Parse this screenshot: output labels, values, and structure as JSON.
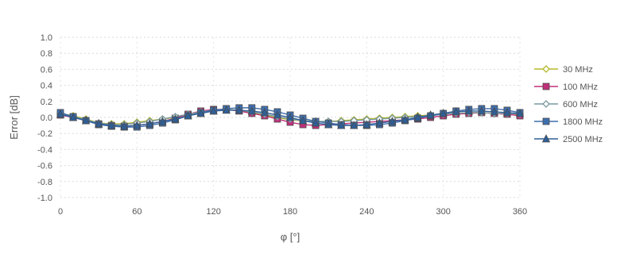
{
  "chart_data": {
    "type": "line",
    "title": "",
    "xlabel": "φ [°]",
    "ylabel": "Error [dB]",
    "xlim": [
      0,
      360
    ],
    "ylim": [
      -1.0,
      1.0
    ],
    "x_ticks": [
      0,
      60,
      120,
      180,
      240,
      300,
      360
    ],
    "x_tick_labels": [
      "0",
      "60",
      "120",
      "180",
      "240",
      "300",
      "360"
    ],
    "y_ticks": [
      1.0,
      0.8,
      0.6,
      0.4,
      0.2,
      0.0,
      -0.2,
      -0.4,
      -0.6,
      -0.8,
      -1.0
    ],
    "y_tick_labels": [
      "1.0",
      "0.8",
      "0.6",
      "0.4",
      "0.2",
      "0.0",
      "-0.2",
      "-0.4",
      "-0.6",
      "-0.8",
      "-1.0"
    ],
    "grid": true,
    "legend_position": "right",
    "x": [
      0,
      10,
      20,
      30,
      40,
      50,
      60,
      70,
      80,
      90,
      100,
      110,
      120,
      130,
      140,
      150,
      160,
      170,
      180,
      190,
      200,
      210,
      220,
      230,
      240,
      250,
      260,
      270,
      280,
      290,
      300,
      310,
      320,
      330,
      340,
      350,
      360
    ],
    "series": [
      {
        "name": "30 MHz",
        "color": "#b5b82a",
        "marker": "diamond",
        "values": [
          0.05,
          0.02,
          -0.02,
          -0.07,
          -0.08,
          -0.08,
          -0.06,
          -0.04,
          -0.02,
          0.0,
          0.03,
          0.06,
          0.08,
          0.1,
          0.09,
          0.06,
          0.03,
          0.0,
          -0.03,
          -0.04,
          -0.05,
          -0.05,
          -0.04,
          -0.03,
          -0.02,
          -0.01,
          0.0,
          0.01,
          0.02,
          0.03,
          0.04,
          0.05,
          0.06,
          0.06,
          0.05,
          0.04,
          0.04
        ]
      },
      {
        "name": "100 MHz",
        "color": "#c0307a",
        "marker": "square",
        "values": [
          0.03,
          0.0,
          -0.04,
          -0.08,
          -0.1,
          -0.11,
          -0.1,
          -0.08,
          -0.05,
          -0.01,
          0.04,
          0.08,
          0.1,
          0.1,
          0.08,
          0.05,
          0.02,
          -0.02,
          -0.06,
          -0.09,
          -0.1,
          -0.09,
          -0.08,
          -0.07,
          -0.06,
          -0.05,
          -0.04,
          -0.03,
          -0.02,
          0.0,
          0.02,
          0.04,
          0.05,
          0.06,
          0.05,
          0.04,
          0.02
        ]
      },
      {
        "name": "600 MHz",
        "color": "#7a9aa2",
        "marker": "diamond",
        "values": [
          0.04,
          0.01,
          -0.03,
          -0.07,
          -0.09,
          -0.09,
          -0.07,
          -0.05,
          -0.02,
          0.01,
          0.04,
          0.07,
          0.09,
          0.1,
          0.09,
          0.07,
          0.04,
          0.01,
          -0.02,
          -0.04,
          -0.05,
          -0.05,
          -0.05,
          -0.04,
          -0.03,
          -0.02,
          -0.01,
          0.0,
          0.01,
          0.02,
          0.04,
          0.05,
          0.06,
          0.06,
          0.05,
          0.05,
          0.04
        ]
      },
      {
        "name": "1800 MHz",
        "color": "#3f6fae",
        "marker": "square",
        "values": [
          0.06,
          0.01,
          -0.04,
          -0.09,
          -0.11,
          -0.12,
          -0.12,
          -0.1,
          -0.07,
          -0.03,
          0.02,
          0.06,
          0.09,
          0.11,
          0.12,
          0.12,
          0.1,
          0.07,
          0.03,
          -0.01,
          -0.05,
          -0.07,
          -0.09,
          -0.1,
          -0.1,
          -0.09,
          -0.07,
          -0.04,
          -0.01,
          0.02,
          0.05,
          0.08,
          0.1,
          0.11,
          0.11,
          0.09,
          0.06
        ]
      },
      {
        "name": "2500 MHz",
        "color": "#2f5f97",
        "marker": "triangle",
        "values": [
          0.04,
          0.0,
          -0.04,
          -0.08,
          -0.1,
          -0.11,
          -0.1,
          -0.08,
          -0.05,
          -0.02,
          0.02,
          0.05,
          0.08,
          0.09,
          0.09,
          0.08,
          0.06,
          0.03,
          0.0,
          -0.04,
          -0.07,
          -0.09,
          -0.1,
          -0.1,
          -0.09,
          -0.07,
          -0.05,
          -0.03,
          0.0,
          0.03,
          0.05,
          0.07,
          0.08,
          0.08,
          0.07,
          0.06,
          0.05
        ]
      }
    ]
  }
}
